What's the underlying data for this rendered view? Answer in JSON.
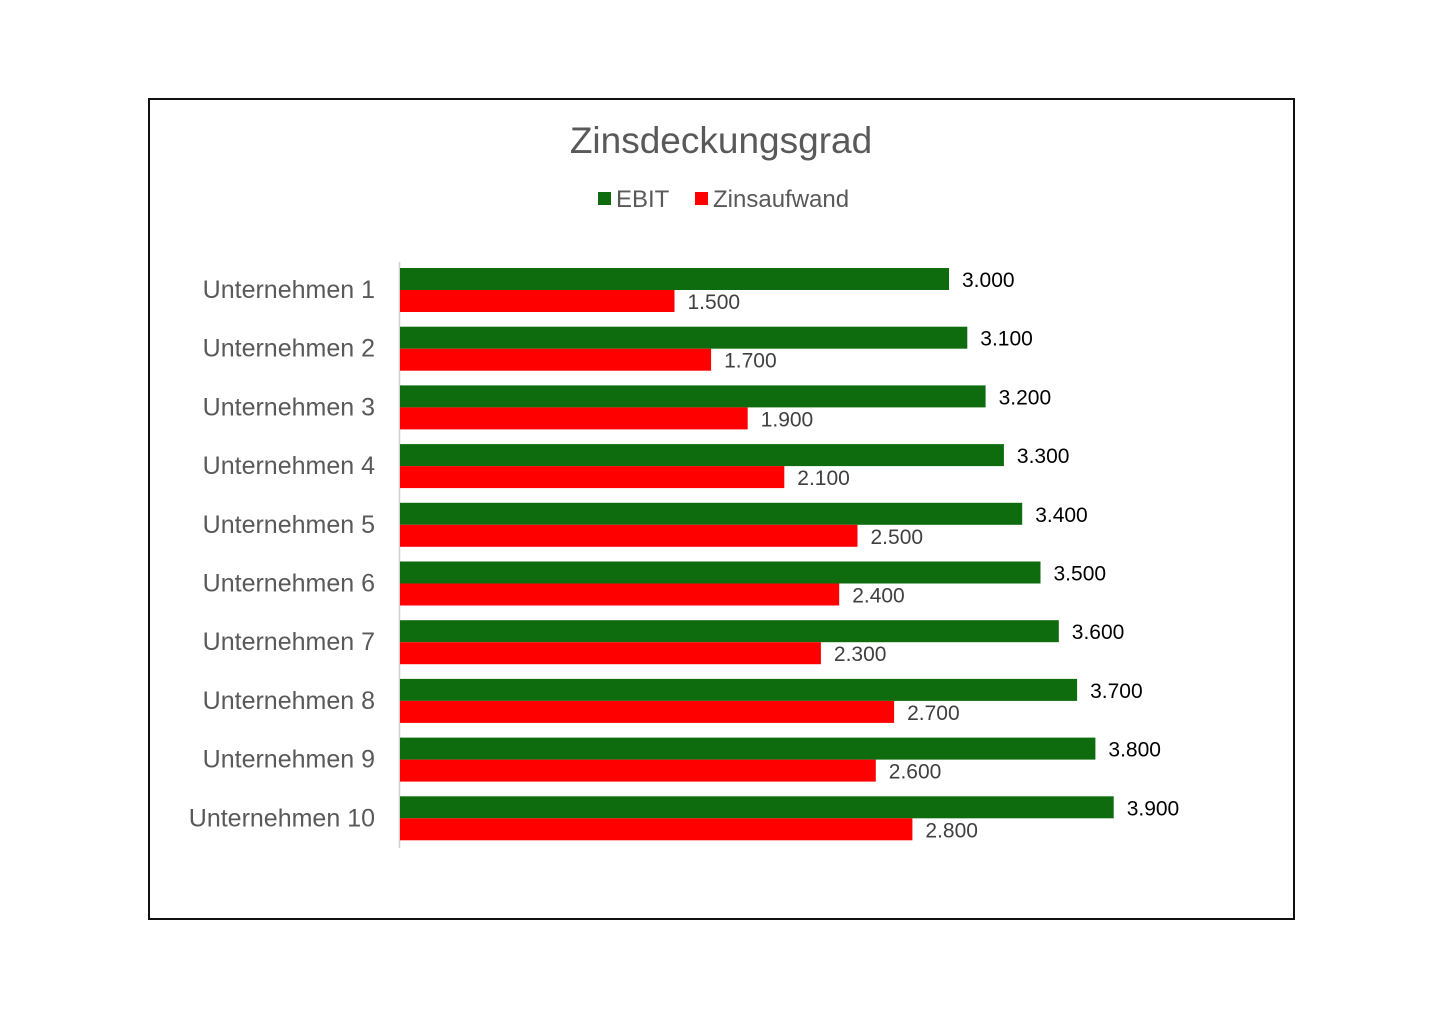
{
  "chart_data": {
    "type": "bar",
    "orientation": "horizontal",
    "title": "Zinsdeckungsgrad",
    "categories": [
      "Unternehmen 1",
      "Unternehmen 2",
      "Unternehmen 3",
      "Unternehmen 4",
      "Unternehmen 5",
      "Unternehmen 6",
      "Unternehmen 7",
      "Unternehmen 8",
      "Unternehmen 9",
      "Unternehmen 10"
    ],
    "series": [
      {
        "name": "EBIT",
        "color": "#0e6b0e",
        "values": [
          3000,
          3100,
          3200,
          3300,
          3400,
          3500,
          3600,
          3700,
          3800,
          3900
        ],
        "labels": [
          "3.000",
          "3.100",
          "3.200",
          "3.300",
          "3.400",
          "3.500",
          "3.600",
          "3.700",
          "3.800",
          "3.900"
        ]
      },
      {
        "name": "Zinsaufwand",
        "color": "#ff0000",
        "values": [
          1500,
          1700,
          1900,
          2100,
          2500,
          2400,
          2300,
          2700,
          2600,
          2800
        ],
        "labels": [
          "1.500",
          "1.700",
          "1.900",
          "2.100",
          "2.500",
          "2.400",
          "2.300",
          "2.700",
          "2.600",
          "2.800"
        ]
      }
    ],
    "xlim": [
      0,
      6000
    ],
    "legend": "top",
    "grid": false
  }
}
